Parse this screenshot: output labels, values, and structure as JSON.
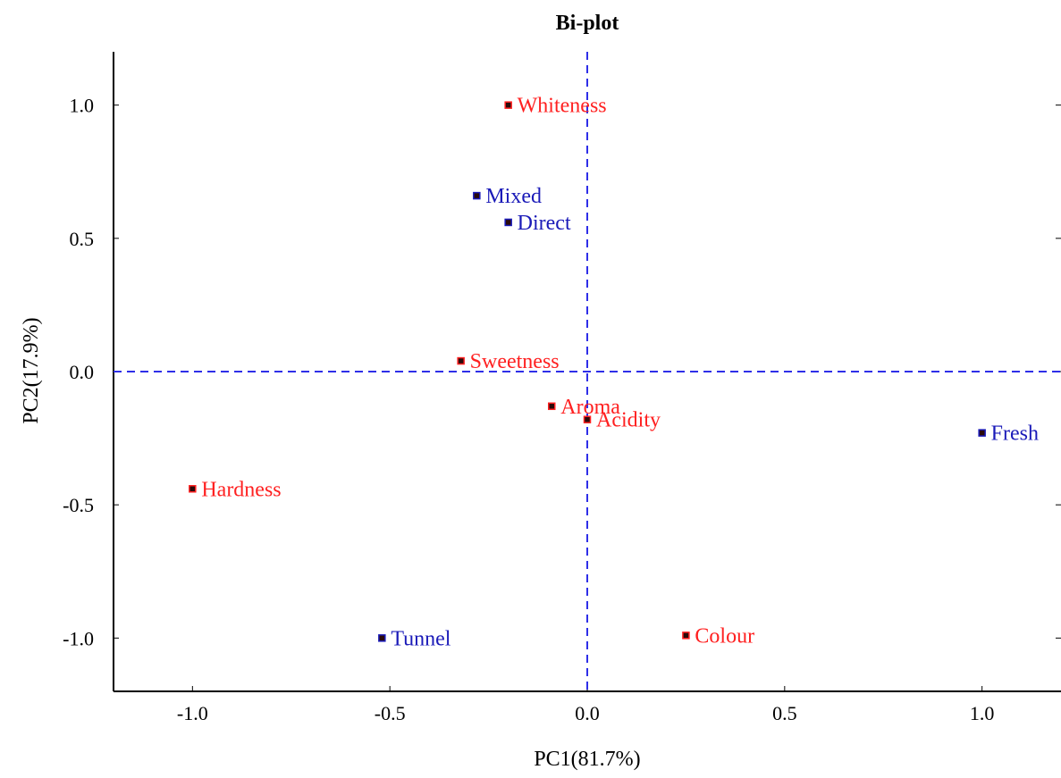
{
  "chart_data": {
    "type": "scatter",
    "title": "Bi-plot",
    "xlabel": "PC1(81.7%)",
    "ylabel": "PC2(17.9%)",
    "xlim": [
      -1.2,
      1.2
    ],
    "ylim": [
      -1.2,
      1.2
    ],
    "xticks": [
      -1.0,
      -0.5,
      0.0,
      0.5,
      1.0
    ],
    "yticks": [
      -1.0,
      -0.5,
      0.0,
      0.5,
      1.0
    ],
    "xtick_labels": [
      "-1.0",
      "-0.5",
      "0.0",
      "0.5",
      "1.0"
    ],
    "ytick_labels": [
      "-1.0",
      "-0.5",
      "0.0",
      "0.5",
      "1.0"
    ],
    "reference_lines": {
      "x": 0.0,
      "y": 0.0,
      "style": "dashed",
      "color": "#2e2ee8"
    },
    "grid": false,
    "series": [
      {
        "color": "#ff2020",
        "points": [
          {
            "label": "Whiteness",
            "x": -0.2,
            "y": 1.0
          },
          {
            "label": "Sweetness",
            "x": -0.32,
            "y": 0.04
          },
          {
            "label": "Aroma",
            "x": -0.09,
            "y": -0.13
          },
          {
            "label": "Acidity",
            "x": 0.0,
            "y": -0.18
          },
          {
            "label": "Hardness",
            "x": -1.0,
            "y": -0.44
          },
          {
            "label": "Colour",
            "x": 0.25,
            "y": -0.99
          }
        ]
      },
      {
        "color": "#1a1ab8",
        "points": [
          {
            "label": "Mixed",
            "x": -0.28,
            "y": 0.66
          },
          {
            "label": "Direct",
            "x": -0.2,
            "y": 0.56
          },
          {
            "label": "Fresh",
            "x": 1.0,
            "y": -0.23
          },
          {
            "label": "Tunnel",
            "x": -0.52,
            "y": -1.0
          }
        ]
      }
    ]
  }
}
